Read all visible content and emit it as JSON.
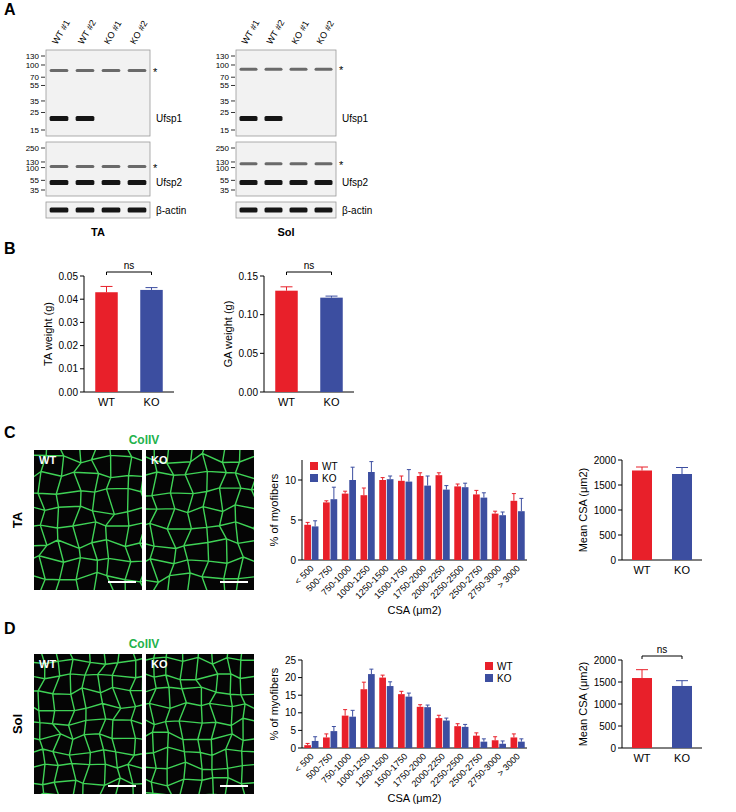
{
  "panel_letters": [
    "A",
    "B",
    "C",
    "D"
  ],
  "asterisk": "*",
  "blots": [
    {
      "tissue": "TA",
      "lanes": [
        "WT #1",
        "WT #2",
        "KO #1",
        "KO #2"
      ],
      "membranes": [
        {
          "protein": "Ufsp1",
          "markers": [
            130,
            100,
            70,
            55,
            35,
            25,
            15
          ],
          "bands": [
            {
              "kda": 85,
              "lanes": [
                1,
                1,
                1,
                1
              ],
              "nonspecific": true
            },
            {
              "kda": 21,
              "lanes": [
                1,
                1,
                0,
                0
              ]
            }
          ]
        },
        {
          "protein": "Ufsp2",
          "markers": [
            250,
            130,
            100,
            55,
            35
          ],
          "bands": [
            {
              "kda": 105,
              "lanes": [
                1,
                1,
                1,
                1
              ],
              "nonspecific": true
            },
            {
              "kda": 50,
              "lanes": [
                1,
                1,
                1,
                1
              ]
            }
          ]
        },
        {
          "protein": "β-actin",
          "bands": [
            {
              "lanes": [
                1,
                1,
                1,
                1
              ]
            }
          ]
        }
      ]
    },
    {
      "tissue": "Sol",
      "lanes": [
        "WT #1",
        "WT #2",
        "KO #1",
        "KO #2"
      ],
      "membranes": [
        {
          "protein": "Ufsp1",
          "markers": [
            130,
            100,
            70,
            55,
            35,
            25,
            15
          ],
          "bands": [
            {
              "kda": 88,
              "lanes": [
                1,
                1,
                1,
                1
              ],
              "nonspecific": true
            },
            {
              "kda": 21,
              "lanes": [
                1,
                1,
                0,
                0
              ]
            }
          ]
        },
        {
          "protein": "Ufsp2",
          "markers": [
            250,
            130,
            100,
            55,
            35
          ],
          "bands": [
            {
              "kda": 120,
              "lanes": [
                1,
                1,
                1,
                1
              ],
              "nonspecific": true
            },
            {
              "kda": 50,
              "lanes": [
                1,
                1,
                1,
                1
              ]
            }
          ]
        },
        {
          "protein": "β-actin",
          "bands": [
            {
              "lanes": [
                1,
                1,
                1,
                1
              ]
            }
          ]
        }
      ]
    }
  ],
  "micrographs": [
    {
      "tissue": "TA",
      "stain": "ColIV",
      "groups": [
        "WT",
        "KO"
      ]
    },
    {
      "tissue": "Sol",
      "stain": "ColIV",
      "groups": [
        "WT",
        "KO"
      ]
    }
  ],
  "chart_data": [
    {
      "type": "bar",
      "y_label": "TA weight (g)",
      "categories": [
        "WT",
        "KO"
      ],
      "values": [
        0.043,
        0.044
      ],
      "errors": [
        0.0025,
        0.001
      ],
      "colors": [
        "#e8202a",
        "#3c4ea0"
      ],
      "ylim": [
        0,
        0.05
      ],
      "yticks": [
        {
          "value": 0,
          "label": "0.00"
        },
        0.01,
        0.02,
        0.03,
        0.04,
        0.05
      ],
      "annotations": [
        "ns"
      ]
    },
    {
      "type": "bar",
      "y_label": "GA weight (g)",
      "categories": [
        "WT",
        "KO"
      ],
      "values": [
        0.131,
        0.122
      ],
      "errors": [
        0.005,
        0.002
      ],
      "colors": [
        "#e8202a",
        "#3c4ea0"
      ],
      "ylim": [
        0,
        0.15
      ],
      "yticks": [
        {
          "value": 0,
          "label": "0.00"
        },
        0.05,
        {
          "value": 0.1,
          "label": "0.10"
        },
        0.15
      ],
      "annotations": [
        "ns"
      ]
    },
    {
      "type": "bar",
      "y_label": "% of myofibers",
      "x_label": "CSA (μm2)",
      "categories": [
        "< 500",
        "500-750",
        "750-1000",
        "1000-1250",
        "1250-1500",
        "1500-1750",
        "1750-2000",
        "2000-2250",
        "2250-2500",
        "2500-2750",
        "2750-3000",
        "> 3000"
      ],
      "series": [
        {
          "name": "WT",
          "color": "#e8202a",
          "values": [
            4.4,
            7.2,
            8.3,
            8.1,
            10.0,
            9.9,
            10.5,
            10.6,
            9.2,
            8.2,
            5.8,
            7.4
          ],
          "errors": [
            0.3,
            0.2,
            0.3,
            0.9,
            0.3,
            0.6,
            0.4,
            0.3,
            0.3,
            0.5,
            0.3,
            0.9
          ]
        },
        {
          "name": "KO",
          "color": "#3c4ea0",
          "values": [
            4.2,
            7.6,
            10.0,
            11.0,
            10.1,
            9.8,
            9.3,
            8.8,
            9.1,
            7.8,
            5.6,
            6.1
          ],
          "errors": [
            0.7,
            1.5,
            1.6,
            1.3,
            0.4,
            1.5,
            1.2,
            0.5,
            0.5,
            0.6,
            0.4,
            1.6
          ]
        }
      ],
      "ylim": [
        0,
        12.5
      ],
      "yticks": [
        0,
        5,
        10
      ],
      "legend": "top-left"
    },
    {
      "type": "bar",
      "y_label": "Mean CSA (μm2)",
      "categories": [
        "WT",
        "KO"
      ],
      "values": [
        1790,
        1720
      ],
      "errors": [
        70,
        130
      ],
      "colors": [
        "#e8202a",
        "#3c4ea0"
      ],
      "ylim": [
        0,
        2000
      ],
      "yticks": [
        0,
        500,
        1000,
        1500,
        2000
      ]
    },
    {
      "type": "bar",
      "y_label": "% of myofibers",
      "x_label": "CSA (μm2)",
      "categories": [
        "< 500",
        "500-750",
        "750-1000",
        "1000-1250",
        "1250-1500",
        "1500-1750",
        "1750-2000",
        "2000-2250",
        "2250-2500",
        "2500-2750",
        "2750-3000",
        "> 3000"
      ],
      "series": [
        {
          "name": "WT",
          "color": "#e8202a",
          "values": [
            0.8,
            3.0,
            9.2,
            16.7,
            20.0,
            15.3,
            11.7,
            8.5,
            6.2,
            3.5,
            2.2,
            3.0
          ],
          "errors": [
            0.5,
            1.0,
            1.7,
            2.0,
            0.7,
            0.8,
            0.6,
            0.8,
            0.7,
            0.8,
            1.0,
            1.0
          ]
        },
        {
          "name": "KO",
          "color": "#3c4ea0",
          "values": [
            2.0,
            4.8,
            8.9,
            21.0,
            17.6,
            14.6,
            11.6,
            7.8,
            6.0,
            1.8,
            1.2,
            1.8
          ],
          "errors": [
            1.2,
            1.3,
            1.8,
            1.4,
            1.2,
            1.0,
            0.6,
            0.7,
            0.7,
            0.8,
            0.8,
            0.8
          ]
        }
      ],
      "ylim": [
        0,
        25
      ],
      "yticks": [
        0,
        5,
        10,
        15,
        20,
        25
      ],
      "legend": "top-right"
    },
    {
      "type": "bar",
      "y_label": "Mean CSA (μm2)",
      "categories": [
        "WT",
        "KO"
      ],
      "values": [
        1590,
        1410
      ],
      "errors": [
        190,
        120
      ],
      "colors": [
        "#e8202a",
        "#3c4ea0"
      ],
      "ylim": [
        0,
        2000
      ],
      "yticks": [
        0,
        500,
        1000,
        1500,
        2000
      ],
      "annotations": [
        "ns"
      ]
    }
  ]
}
